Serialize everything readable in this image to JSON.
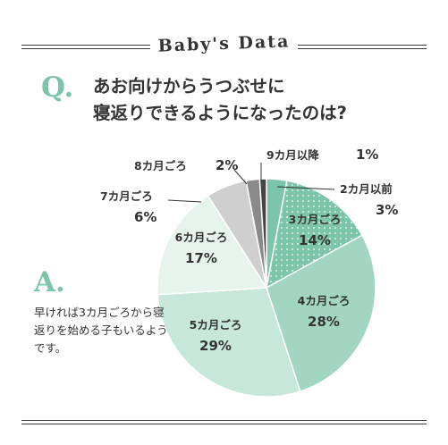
{
  "header": {
    "title": "Baby's Data"
  },
  "question": {
    "mark": "Q.",
    "lines": [
      "あお向けからうつぶせに",
      "寝返りできるようになったのは?"
    ]
  },
  "answer": {
    "mark": "A.",
    "text": "早ければ3カ月ごろから寝返りを始める子もいるようです。"
  },
  "colors": {
    "accent": "#7cc5a9",
    "dark_slice": "#444444",
    "mid_slice": "#8a8a8a",
    "light_slice": "#cfcfcf"
  },
  "chart_data": {
    "type": "pie",
    "slices": [
      {
        "label": "2カ月以前",
        "value": 3,
        "value_label": "3%"
      },
      {
        "label": "3カ月ごろ",
        "value": 14,
        "value_label": "14%"
      },
      {
        "label": "4カ月ごろ",
        "value": 28,
        "value_label": "28%"
      },
      {
        "label": "5カ月ごろ",
        "value": 29,
        "value_label": "29%"
      },
      {
        "label": "6カ月ごろ",
        "value": 17,
        "value_label": "17%"
      },
      {
        "label": "7カ月ごろ",
        "value": 6,
        "value_label": "6%"
      },
      {
        "label": "8カ月ごろ",
        "value": 2,
        "value_label": "2%"
      },
      {
        "label": "9カ月以降",
        "value": 1,
        "value_label": "1%"
      }
    ]
  }
}
